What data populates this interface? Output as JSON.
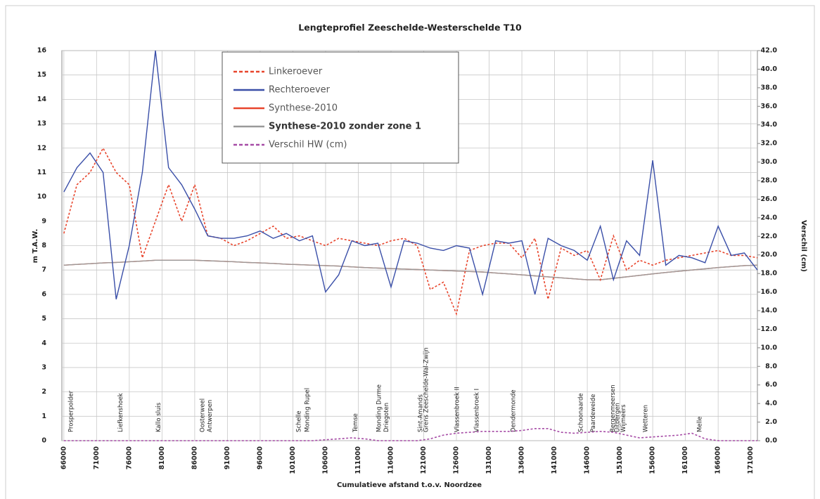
{
  "chart_data": {
    "type": "line",
    "title": "Lengteprofiel Zeeschelde-Westerschelde T10",
    "ylabel": "m T.A.W.",
    "y2label": "Verschil (cm)",
    "xlabel": "Cumulatieve afstand t.o.v. Noordzee",
    "xlim": [
      65700,
      172000
    ],
    "xticks": [
      66000,
      71000,
      76000,
      81000,
      86000,
      91000,
      96000,
      101000,
      106000,
      111000,
      116000,
      121000,
      126000,
      131000,
      136000,
      141000,
      146000,
      151000,
      156000,
      161000,
      166000,
      171000
    ],
    "ylim": [
      0,
      16
    ],
    "yticks": [
      0,
      1,
      2,
      3,
      4,
      5,
      6,
      7,
      8,
      9,
      10,
      11,
      12,
      13,
      14,
      15,
      16
    ],
    "y2lim": [
      0,
      42
    ],
    "y2ticks": [
      {
        "value": 0,
        "label": "0.0"
      },
      {
        "value": 2,
        "label": "2.0"
      },
      {
        "value": 4,
        "label": "4.0"
      },
      {
        "value": 6,
        "label": "6.0"
      },
      {
        "value": 8,
        "label": "8.0"
      },
      {
        "value": 10,
        "label": "10.0"
      },
      {
        "value": 12,
        "label": "12.0"
      },
      {
        "value": 14,
        "label": "14.0"
      },
      {
        "value": 16,
        "label": "16.0"
      },
      {
        "value": 18,
        "label": "18.0"
      },
      {
        "value": 20,
        "label": "20.0"
      },
      {
        "value": 22,
        "label": "22.0"
      },
      {
        "value": 24,
        "label": "24.0"
      },
      {
        "value": 26,
        "label": "26.0"
      },
      {
        "value": 28,
        "label": "28.0"
      },
      {
        "value": 30,
        "label": "30.0"
      },
      {
        "value": 32,
        "label": "32.0"
      },
      {
        "value": 34,
        "label": "34.0"
      },
      {
        "value": 36,
        "label": "36.0"
      },
      {
        "value": 38,
        "label": "38.0"
      },
      {
        "value": 40,
        "label": "40.0"
      },
      {
        "value": 42,
        "label": "42.0"
      }
    ],
    "grid": true,
    "x": [
      66000,
      68000,
      70000,
      72000,
      74000,
      76000,
      78000,
      80000,
      82000,
      84000,
      86000,
      88000,
      90000,
      92000,
      94000,
      96000,
      98000,
      100000,
      102000,
      104000,
      106000,
      108000,
      110000,
      112000,
      114000,
      116000,
      118000,
      120000,
      122000,
      124000,
      126000,
      128000,
      130000,
      132000,
      134000,
      136000,
      138000,
      140000,
      142000,
      144000,
      146000,
      148000,
      150000,
      152000,
      154000,
      156000,
      158000,
      160000,
      162000,
      164000,
      166000,
      168000,
      170000,
      172000
    ],
    "series": [
      {
        "name": "Linkeroever",
        "color": "#e8452c",
        "dashed": true,
        "values": [
          8.5,
          10.5,
          11.0,
          12.0,
          11.0,
          10.5,
          7.5,
          9.0,
          10.5,
          9.0,
          10.5,
          8.4,
          8.3,
          8.0,
          8.2,
          8.5,
          8.8,
          8.3,
          8.4,
          8.2,
          8.0,
          8.3,
          8.2,
          8.1,
          8.0,
          8.2,
          8.3,
          8.0,
          6.2,
          6.5,
          5.2,
          7.8,
          8.0,
          8.1,
          8.1,
          7.5,
          8.3,
          5.8,
          7.9,
          7.6,
          7.8,
          6.6,
          8.4,
          7.0,
          7.4,
          7.2,
          7.4,
          7.5,
          7.6,
          7.7,
          7.8,
          7.6,
          7.6,
          7.5
        ]
      },
      {
        "name": "Rechteroever",
        "color": "#3a4fa8",
        "dashed": false,
        "values": [
          10.2,
          11.2,
          11.8,
          11.0,
          5.8,
          8.0,
          11.0,
          16.0,
          11.2,
          10.5,
          9.5,
          8.4,
          8.3,
          8.3,
          8.4,
          8.6,
          8.3,
          8.5,
          8.2,
          8.4,
          6.1,
          6.8,
          8.2,
          8.0,
          8.1,
          6.3,
          8.2,
          8.1,
          7.9,
          7.8,
          8.0,
          7.9,
          6.0,
          8.2,
          8.1,
          8.2,
          6.0,
          8.3,
          8.0,
          7.8,
          7.4,
          8.8,
          6.6,
          8.2,
          7.6,
          11.5,
          7.2,
          7.6,
          7.5,
          7.3,
          8.8,
          7.6,
          7.7,
          7.0
        ]
      },
      {
        "name": "Synthese-2010",
        "color": "#e8452c",
        "dashed": false,
        "values": [
          7.2,
          7.23,
          7.26,
          7.29,
          7.31,
          7.34,
          7.37,
          7.4,
          7.4,
          7.4,
          7.4,
          7.38,
          7.36,
          7.34,
          7.31,
          7.29,
          7.27,
          7.24,
          7.22,
          7.2,
          7.18,
          7.16,
          7.13,
          7.1,
          7.08,
          7.06,
          7.04,
          7.02,
          7.0,
          6.98,
          6.96,
          6.94,
          6.92,
          6.88,
          6.84,
          6.8,
          6.76,
          6.72,
          6.68,
          6.64,
          6.6,
          6.6,
          6.66,
          6.72,
          6.78,
          6.84,
          6.9,
          6.95,
          7.0,
          7.05,
          7.1,
          7.14,
          7.18,
          7.2
        ]
      },
      {
        "name": "Synthese-2010 zonder zone 1",
        "color": "#9a9a9a",
        "dashed": false,
        "font_weight": "bold",
        "values": [
          7.2,
          7.23,
          7.26,
          7.29,
          7.31,
          7.34,
          7.37,
          7.4,
          7.4,
          7.4,
          7.4,
          7.38,
          7.36,
          7.34,
          7.31,
          7.29,
          7.27,
          7.24,
          7.22,
          7.2,
          7.18,
          7.16,
          7.13,
          7.1,
          7.08,
          7.06,
          7.04,
          7.02,
          7.0,
          6.98,
          6.96,
          6.94,
          6.92,
          6.88,
          6.84,
          6.8,
          6.76,
          6.72,
          6.68,
          6.64,
          6.6,
          6.6,
          6.66,
          6.72,
          6.78,
          6.84,
          6.9,
          6.95,
          7.0,
          7.05,
          7.1,
          7.14,
          7.18,
          7.2
        ]
      },
      {
        "name": "Verschil HW (cm)",
        "color": "#a64ca6",
        "dashed": true,
        "axis": "y2",
        "values": [
          0,
          0,
          0,
          0,
          0,
          0,
          0,
          0,
          0,
          0,
          0,
          0,
          0,
          0,
          0,
          0,
          0,
          0,
          0,
          0,
          0.1,
          0.2,
          0.3,
          0.2,
          0,
          0,
          0,
          0,
          0.2,
          0.6,
          0.8,
          0.9,
          1.0,
          1.0,
          1.0,
          1.1,
          1.3,
          1.3,
          0.9,
          0.8,
          0.9,
          1.0,
          0.9,
          0.6,
          0.3,
          0.4,
          0.5,
          0.6,
          0.8,
          0.2,
          0,
          0,
          0,
          0
        ]
      }
    ],
    "annotations": [
      {
        "text": "Prosperpolder",
        "x": 67100
      },
      {
        "text": "Liefkenshoek",
        "x": 74700
      },
      {
        "text": "Kallo sluis",
        "x": 80500
      },
      {
        "text": "Oosterweel",
        "x": 87200
      },
      {
        "text": "Antwerpen",
        "x": 88300
      },
      {
        "text": "Schelle",
        "x": 101900
      },
      {
        "text": "Monding Rupel",
        "x": 103200
      },
      {
        "text": "Temse",
        "x": 110600
      },
      {
        "text": "Monding Durme",
        "x": 114200
      },
      {
        "text": "Driegoten",
        "x": 115300
      },
      {
        "text": "Sint-Amands",
        "x": 120500
      },
      {
        "text": "Grens Zeeschelde-Wal-Zwijn",
        "x": 121400
      },
      {
        "text": "Vlassenbroek II",
        "x": 126100
      },
      {
        "text": "Vlassenbroek I",
        "x": 129100
      },
      {
        "text": "Dendermonde",
        "x": 134700
      },
      {
        "text": "Schoonaarde",
        "x": 145000
      },
      {
        "text": "Paardeweide",
        "x": 146900
      },
      {
        "text": "Bergenmeersen",
        "x": 149900
      },
      {
        "text": "Uitbergen",
        "x": 150600
      },
      {
        "text": "Wijmeers",
        "x": 151500
      },
      {
        "text": "Wetteren",
        "x": 154900
      },
      {
        "text": "Melle",
        "x": 163200
      }
    ]
  }
}
